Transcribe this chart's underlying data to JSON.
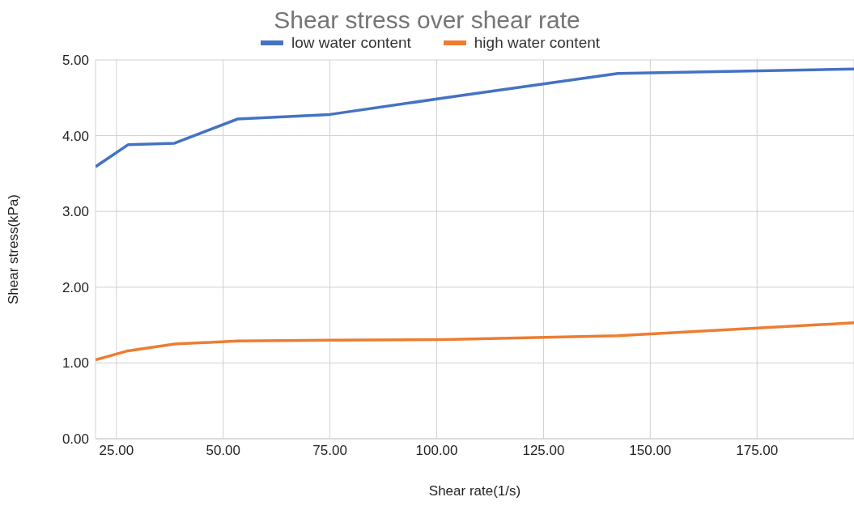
{
  "chart_data": {
    "type": "line",
    "title": "Shear stress over shear rate",
    "xlabel": "Shear rate(1/s)",
    "ylabel": "Shear stress(kPa)",
    "x": [
      20.1,
      27.7,
      38.6,
      53.4,
      75,
      102,
      142.4,
      197.7
    ],
    "series": [
      {
        "name": "low water content",
        "color": "#4472c4",
        "values": [
          3.59,
          3.88,
          3.9,
          4.22,
          4.28,
          4.5,
          4.82,
          4.88
        ]
      },
      {
        "name": "high water content",
        "color": "#ed7d31",
        "values": [
          1.04,
          1.16,
          1.25,
          1.29,
          1.3,
          1.31,
          1.36,
          1.53
        ]
      }
    ],
    "xlim": [
      20.1,
      197.7
    ],
    "xticks": [
      {
        "value": 25,
        "label": "25.00"
      },
      {
        "value": 50,
        "label": "50.00"
      },
      {
        "value": 75,
        "label": "75.00"
      },
      {
        "value": 100,
        "label": "100.00"
      },
      {
        "value": 125,
        "label": "125.00"
      },
      {
        "value": 150,
        "label": "150.00"
      },
      {
        "value": 175,
        "label": "175.00"
      }
    ],
    "ylim": [
      0,
      5
    ],
    "yticks": [
      {
        "value": 0,
        "label": "0.00"
      },
      {
        "value": 1,
        "label": "1.00"
      },
      {
        "value": 2,
        "label": "2.00"
      },
      {
        "value": 3,
        "label": "3.00"
      },
      {
        "value": 4,
        "label": "4.00"
      },
      {
        "value": 5,
        "label": "5.00"
      }
    ],
    "grid": true,
    "legend": "top",
    "marker": "none",
    "line_style": "solid"
  }
}
